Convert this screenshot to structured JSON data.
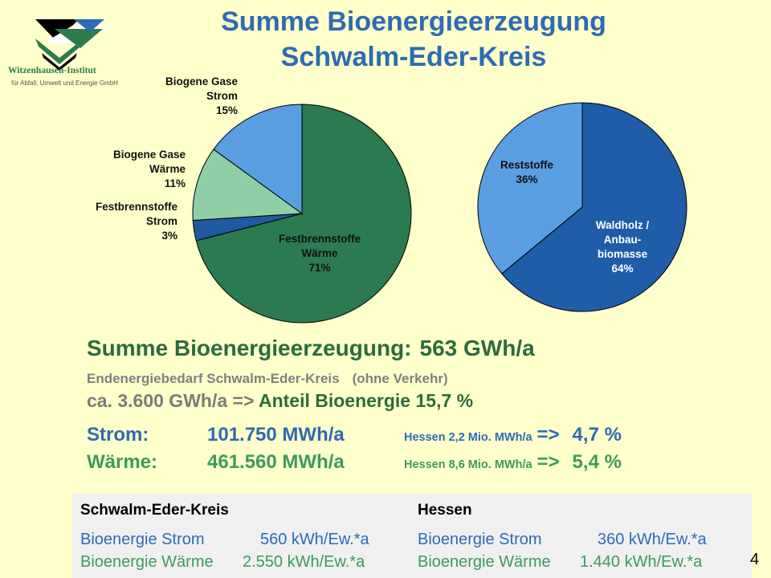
{
  "title": {
    "line1": "Summe Bioenergieerzeugung",
    "line2": "Schwalm-Eder-Kreis"
  },
  "logo": {
    "name": "Witzenhausen-Institut",
    "subtitle": "für Abfall, Umwelt und Energie GmbH",
    "colors": [
      "#000000",
      "#2e7b4e",
      "#2e6bb4"
    ]
  },
  "chart_data": [
    {
      "type": "pie",
      "slices": [
        {
          "label_lines": [
            "Festbrennstoffe",
            "Wärme",
            "71%"
          ],
          "value": 71,
          "color": "#2c7a4f"
        },
        {
          "label_lines": [
            "Festbrennstoffe",
            "Strom",
            "3%"
          ],
          "value": 3,
          "color": "#1f5aa0"
        },
        {
          "label_lines": [
            "Biogene Gase",
            "Wärme",
            "11%"
          ],
          "value": 11,
          "color": "#8fcfa6"
        },
        {
          "label_lines": [
            "Biogene Gase",
            "Strom",
            "15%"
          ],
          "value": 15,
          "color": "#5a9ee2"
        }
      ]
    },
    {
      "type": "pie",
      "slices": [
        {
          "label_lines": [
            "Waldholz /",
            "Anbau-",
            "biomasse",
            "64%"
          ],
          "value": 64,
          "color": "#1f5da8"
        },
        {
          "label_lines": [
            "Reststoffe",
            "36%"
          ],
          "value": 36,
          "color": "#5a9ee2"
        }
      ]
    }
  ],
  "summary": {
    "label": "Summe Bioenergieerzeugung:",
    "value": "563 GWh/a"
  },
  "demand": {
    "label": "Endenergiebedarf Schwalm-Eder-Kreis",
    "note": "(ohne Verkehr)"
  },
  "share": {
    "amount": "ca. 3.600 GWh/a =>",
    "label": "Anteil Bioenergie",
    "value": "15,7 %"
  },
  "energy_rows": [
    {
      "label": "Strom:",
      "value": "101.750 MWh/a",
      "hessen": "Hessen 2,2 Mio. MWh/a",
      "arrow": "=>",
      "percent": "4,7 %"
    },
    {
      "label": "Wärme:",
      "value": "461.560 MWh/a",
      "hessen": "Hessen 8,6 Mio. MWh/a",
      "arrow": "=>",
      "percent": "5,4 %"
    }
  ],
  "comparison": {
    "left": {
      "header": "Schwalm-Eder-Kreis",
      "strom_label": "Bioenergie Strom",
      "strom_value": "560 kWh/Ew.*a",
      "waerme_label": "Bioenergie Wärme",
      "waerme_value": "2.550 kWh/Ew.*a"
    },
    "right": {
      "header": "Hessen",
      "strom_label": "Bioenergie Strom",
      "strom_value": "360 kWh/Ew.*a",
      "waerme_label": "Bioenergie Wärme",
      "waerme_value": "1.440 kWh/Ew.*a"
    }
  },
  "page_number": "4"
}
